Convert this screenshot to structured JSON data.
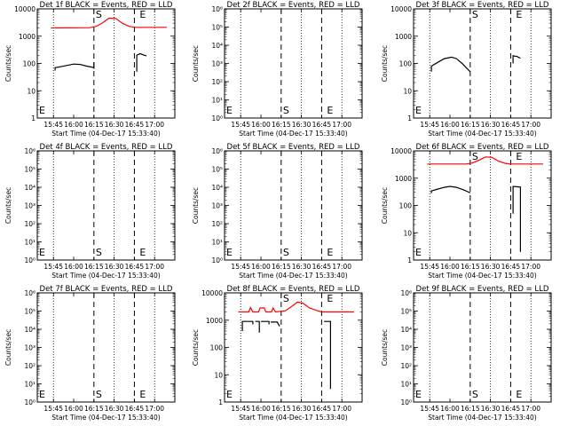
{
  "chart_data": [
    {
      "type": "line",
      "scale": "log",
      "title": "Det 1f BLACK = Events, RED = LLD",
      "ylabel": "Counts/sec",
      "xlabel": "Start Time (04-Dec-17 15:33:40)",
      "ylim": [
        1,
        10000
      ],
      "yticks": [
        "1",
        "10",
        "100",
        "1000",
        "10000"
      ],
      "xlim": [
        15.55,
        17.25
      ],
      "xticks": [
        "15:45",
        "16:00",
        "16:15",
        "16:30",
        "16:45",
        "17:00"
      ],
      "markers": {
        "S": 16.25,
        "E": 16.75
      },
      "dotted_x": [
        15.75,
        16.5,
        17.0
      ],
      "series": [
        {
          "color": "#000000",
          "points": [
            [
              15.77,
              55
            ],
            [
              15.77,
              70
            ],
            [
              15.83,
              75
            ],
            [
              15.92,
              85
            ],
            [
              16.0,
              95
            ],
            [
              16.08,
              92
            ],
            [
              16.16,
              80
            ],
            [
              16.24,
              72
            ],
            [
              16.25,
              68
            ],
            [
              16.25,
              110
            ]
          ]
        },
        {
          "color": "#000000",
          "points": [
            [
              16.78,
              50
            ],
            [
              16.78,
              200
            ],
            [
              16.82,
              230
            ],
            [
              16.87,
              200
            ],
            [
              16.9,
              190
            ]
          ]
        },
        {
          "color": "#ff0000",
          "points": [
            [
              15.72,
              2000
            ],
            [
              16.2,
              2050
            ],
            [
              16.28,
              2300
            ],
            [
              16.35,
              3000
            ],
            [
              16.44,
              4600
            ],
            [
              16.52,
              4500
            ],
            [
              16.6,
              3000
            ],
            [
              16.68,
              2300
            ],
            [
              16.75,
              2100
            ],
            [
              17.15,
              2100
            ]
          ]
        }
      ],
      "labels": {
        "S": "S",
        "E": "E"
      }
    },
    {
      "type": "line",
      "scale": "log",
      "title": "Det 2f BLACK = Events, RED = LLD",
      "ylabel": "Counts/sec",
      "xlabel": "Start Time (04-Dec-17 15:33:40)",
      "ylim": [
        1,
        1000000
      ],
      "yticks": [
        "10⁰",
        "10¹",
        "10²",
        "10³",
        "10⁴",
        "10⁵",
        "10⁶"
      ],
      "xlim": [
        15.55,
        17.25
      ],
      "xticks": [
        "15:45",
        "16:00",
        "16:15",
        "16:30",
        "16:45",
        "17:00"
      ],
      "markers": {
        "S": 16.25,
        "E": 16.75
      },
      "dotted_x": [
        15.75,
        16.5,
        17.0
      ],
      "series": [],
      "labels": {
        "S": "S",
        "E": "E"
      }
    },
    {
      "type": "line",
      "scale": "log",
      "title": "Det 3f BLACK = Events, RED = LLD",
      "ylabel": "Counts/sec",
      "xlabel": "Start Time (04-Dec-17 15:33:40)",
      "ylim": [
        1,
        10000
      ],
      "yticks": [
        "1",
        "10",
        "100",
        "1000",
        "10000"
      ],
      "xlim": [
        15.55,
        17.25
      ],
      "xticks": [
        "15:45",
        "16:00",
        "16:15",
        "16:30",
        "16:45",
        "17:00"
      ],
      "markers": {
        "S": 16.25,
        "E": 16.75
      },
      "dotted_x": [
        15.75,
        16.5,
        17.0
      ],
      "series": [
        {
          "color": "#000000",
          "points": [
            [
              15.77,
              50
            ],
            [
              15.77,
              80
            ],
            [
              15.85,
              110
            ],
            [
              15.93,
              150
            ],
            [
              16.02,
              170
            ],
            [
              16.08,
              150
            ],
            [
              16.15,
              100
            ],
            [
              16.2,
              70
            ],
            [
              16.25,
              50
            ]
          ]
        },
        {
          "color": "#000000",
          "points": [
            [
              16.78,
              100
            ],
            [
              16.78,
              190
            ],
            [
              16.83,
              180
            ],
            [
              16.87,
              155
            ]
          ]
        }
      ],
      "labels": {
        "S": "S",
        "E": "E"
      }
    },
    {
      "type": "line",
      "scale": "log",
      "title": "Det 4f BLACK = Events, RED = LLD",
      "ylabel": "Counts/sec",
      "xlabel": "Start Time (04-Dec-17 15:33:40)",
      "ylim": [
        1,
        1000000
      ],
      "yticks": [
        "10⁰",
        "10¹",
        "10²",
        "10³",
        "10⁴",
        "10⁵",
        "10⁶"
      ],
      "xlim": [
        15.55,
        17.25
      ],
      "xticks": [
        "15:45",
        "16:00",
        "16:15",
        "16:30",
        "16:45",
        "17:00"
      ],
      "markers": {
        "S": 16.25,
        "E": 16.75
      },
      "dotted_x": [
        15.75,
        16.5,
        17.0
      ],
      "series": [],
      "labels": {
        "S": "S",
        "E": "E"
      }
    },
    {
      "type": "line",
      "scale": "log",
      "title": "Det 5f BLACK = Events, RED = LLD",
      "ylabel": "Counts/sec",
      "xlabel": "Start Time (04-Dec-17 15:33:40)",
      "ylim": [
        1,
        1000000
      ],
      "yticks": [
        "10⁰",
        "10¹",
        "10²",
        "10³",
        "10⁴",
        "10⁵",
        "10⁶"
      ],
      "xlim": [
        15.55,
        17.25
      ],
      "xticks": [
        "15:45",
        "16:00",
        "16:15",
        "16:30",
        "16:45",
        "17:00"
      ],
      "markers": {
        "S": 16.25,
        "E": 16.75
      },
      "dotted_x": [
        15.75,
        16.5,
        17.0
      ],
      "series": [],
      "labels": {
        "S": "S",
        "E": "E"
      }
    },
    {
      "type": "line",
      "scale": "log",
      "title": "Det 6f BLACK = Events, RED = LLD",
      "ylabel": "Counts/sec",
      "xlabel": "Start Time (04-Dec-17 15:33:40)",
      "ylim": [
        1,
        10000
      ],
      "yticks": [
        "1",
        "10",
        "100",
        "1000",
        "10000"
      ],
      "xlim": [
        15.55,
        17.25
      ],
      "xticks": [
        "15:45",
        "16:00",
        "16:15",
        "16:30",
        "16:45",
        "17:00"
      ],
      "markers": {
        "S": 16.25,
        "E": 16.75
      },
      "dotted_x": [
        15.75,
        16.5,
        17.0
      ],
      "series": [
        {
          "color": "#000000",
          "points": [
            [
              15.77,
              280
            ],
            [
              15.77,
              340
            ],
            [
              15.85,
              400
            ],
            [
              15.93,
              460
            ],
            [
              16.0,
              500
            ],
            [
              16.08,
              460
            ],
            [
              16.16,
              380
            ],
            [
              16.22,
              320
            ],
            [
              16.25,
              290
            ]
          ]
        },
        {
          "color": "#000000",
          "points": [
            [
              16.78,
              50
            ],
            [
              16.78,
              500
            ],
            [
              16.85,
              480
            ],
            [
              16.87,
              470
            ],
            [
              16.87,
              2
            ]
          ]
        },
        {
          "color": "#ff0000",
          "points": [
            [
              15.72,
              3300
            ],
            [
              16.2,
              3300
            ],
            [
              16.28,
              3600
            ],
            [
              16.36,
              4600
            ],
            [
              16.44,
              6000
            ],
            [
              16.52,
              5800
            ],
            [
              16.6,
              4200
            ],
            [
              16.68,
              3500
            ],
            [
              16.75,
              3300
            ],
            [
              17.15,
              3300
            ]
          ]
        }
      ],
      "labels": {
        "S": "S",
        "E": "E"
      }
    },
    {
      "type": "line",
      "scale": "log",
      "title": "Det 7f BLACK = Events, RED = LLD",
      "ylabel": "Counts/sec",
      "xlabel": "Start Time (04-Dec-17 15:33:40)",
      "ylim": [
        1,
        1000000
      ],
      "yticks": [
        "10⁰",
        "10¹",
        "10²",
        "10³",
        "10⁴",
        "10⁵",
        "10⁶"
      ],
      "xlim": [
        15.55,
        17.25
      ],
      "xticks": [
        "15:45",
        "16:00",
        "16:15",
        "16:30",
        "16:45",
        "17:00"
      ],
      "markers": {
        "S": 16.25,
        "E": 16.75
      },
      "dotted_x": [
        15.75,
        16.5,
        17.0
      ],
      "series": [],
      "labels": {
        "S": "S",
        "E": "E"
      }
    },
    {
      "type": "line",
      "scale": "log",
      "title": "Det 8f BLACK = Events, RED = LLD",
      "ylabel": "Counts/sec",
      "xlabel": "Start Time (04-Dec-17 15:33:40)",
      "ylim": [
        1,
        10000
      ],
      "yticks": [
        "1",
        "10",
        "100",
        "1000",
        "10000"
      ],
      "xlim": [
        15.55,
        17.25
      ],
      "xticks": [
        "15:45",
        "16:00",
        "16:15",
        "16:30",
        "16:45",
        "17:00"
      ],
      "markers": {
        "S": 16.25,
        "E": 16.75
      },
      "dotted_x": [
        15.75,
        16.5,
        17.0
      ],
      "series": [
        {
          "color": "#000000",
          "points": [
            [
              15.77,
              400
            ],
            [
              15.77,
              900
            ],
            [
              15.9,
              900
            ],
            [
              15.9,
              700
            ]
          ]
        },
        {
          "color": "#000000",
          "points": [
            [
              15.93,
              900
            ],
            [
              15.98,
              900
            ],
            [
              15.98,
              350
            ]
          ]
        },
        {
          "color": "#000000",
          "points": [
            [
              16.0,
              900
            ],
            [
              16.1,
              900
            ],
            [
              16.1,
              700
            ]
          ]
        },
        {
          "color": "#000000",
          "points": [
            [
              16.12,
              850
            ],
            [
              16.2,
              850
            ],
            [
              16.23,
              600
            ]
          ]
        },
        {
          "color": "#000000",
          "points": [
            [
              16.78,
              900
            ],
            [
              16.86,
              900
            ],
            [
              16.86,
              3
            ]
          ]
        },
        {
          "color": "#ff0000",
          "points": [
            [
              15.72,
              2000
            ],
            [
              15.85,
              2000
            ],
            [
              15.87,
              2900
            ],
            [
              15.9,
              2000
            ],
            [
              15.97,
              2000
            ],
            [
              15.99,
              2800
            ],
            [
              16.04,
              2800
            ],
            [
              16.06,
              2000
            ],
            [
              16.13,
              2000
            ],
            [
              16.15,
              2800
            ],
            [
              16.18,
              2000
            ],
            [
              16.3,
              2200
            ],
            [
              16.38,
              3200
            ],
            [
              16.45,
              4600
            ],
            [
              16.52,
              4200
            ],
            [
              16.6,
              2800
            ],
            [
              16.7,
              2200
            ],
            [
              16.75,
              2000
            ],
            [
              17.15,
              2000
            ]
          ]
        }
      ],
      "labels": {
        "S": "S",
        "E": "E"
      }
    },
    {
      "type": "line",
      "scale": "log",
      "title": "Det 9f BLACK = Events, RED = LLD",
      "ylabel": "Counts/sec",
      "xlabel": "Start Time (04-Dec-17 15:33:40)",
      "ylim": [
        1,
        1000000
      ],
      "yticks": [
        "10⁰",
        "10¹",
        "10²",
        "10³",
        "10⁴",
        "10⁵",
        "10⁶"
      ],
      "xlim": [
        15.55,
        17.25
      ],
      "xticks": [
        "15:45",
        "16:00",
        "16:15",
        "16:30",
        "16:45",
        "17:00"
      ],
      "markers": {
        "S": 16.25,
        "E": 16.75
      },
      "dotted_x": [
        15.75,
        16.5,
        17.0
      ],
      "series": [],
      "labels": {
        "S": "S",
        "E": "E"
      }
    }
  ]
}
